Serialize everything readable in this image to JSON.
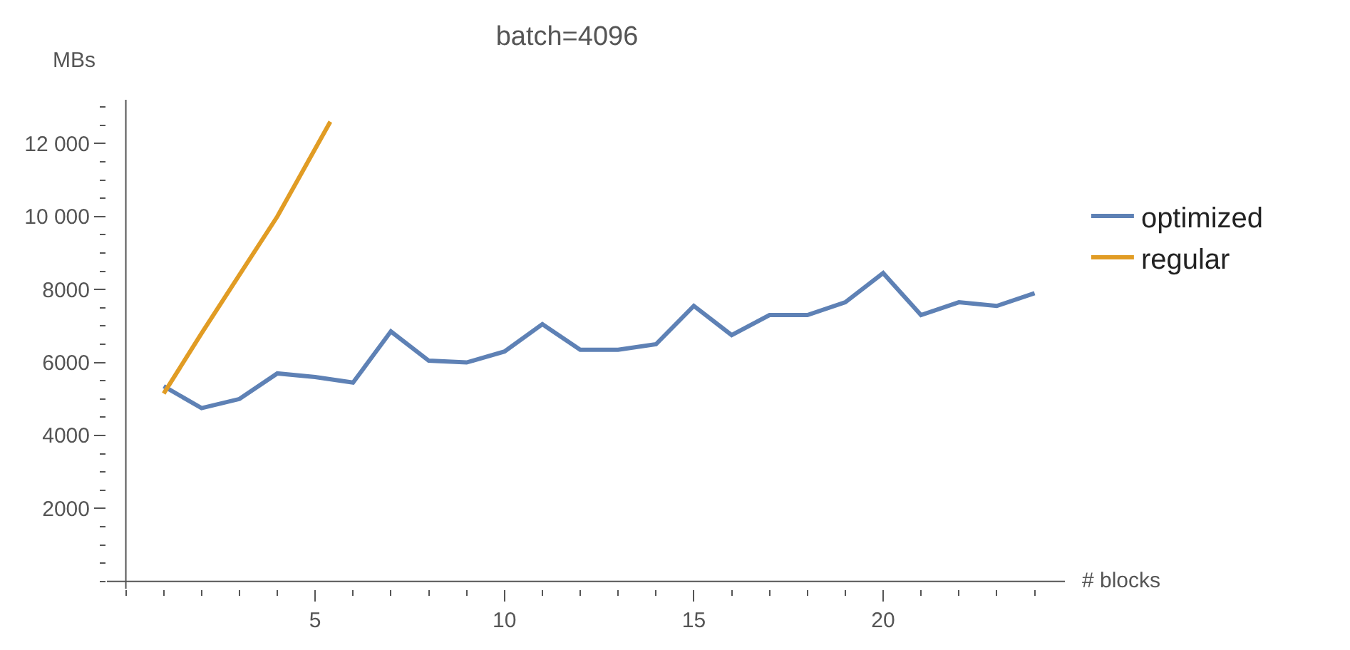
{
  "chart_data": {
    "type": "line",
    "title": "batch=4096",
    "xlabel": "# blocks",
    "ylabel": "MBs",
    "x": [
      1,
      2,
      3,
      4,
      5,
      6,
      7,
      8,
      9,
      10,
      11,
      12,
      13,
      14,
      15,
      16,
      17,
      18,
      19,
      20,
      21,
      22,
      23,
      24
    ],
    "series": [
      {
        "name": "optimized",
        "color": "#5e81b5",
        "values": [
          5350,
          4750,
          5000,
          5700,
          5600,
          5450,
          6850,
          6050,
          6000,
          6300,
          7050,
          6350,
          6350,
          6500,
          7550,
          6750,
          7300,
          7300,
          7650,
          8450,
          7300,
          7650,
          7550,
          7900
        ]
      },
      {
        "name": "regular",
        "color": "#e19c24",
        "x": [
          1,
          2,
          3,
          4,
          5.4
        ],
        "values": [
          5150,
          6800,
          8400,
          10000,
          12600
        ]
      }
    ],
    "xlim": [
      -0.5,
      24.8
    ],
    "ylim": [
      -200,
      13200
    ],
    "xticks": [
      5,
      10,
      15,
      20
    ],
    "yticks": [
      {
        "value": 2000,
        "label": "2000"
      },
      {
        "value": 4000,
        "label": "4000"
      },
      {
        "value": 6000,
        "label": "6000"
      },
      {
        "value": 8000,
        "label": "8000"
      },
      {
        "value": 10000,
        "label": "10 000"
      },
      {
        "value": 12000,
        "label": "12 000"
      }
    ],
    "legend": "right",
    "marker": "none",
    "line_style": "solid"
  }
}
